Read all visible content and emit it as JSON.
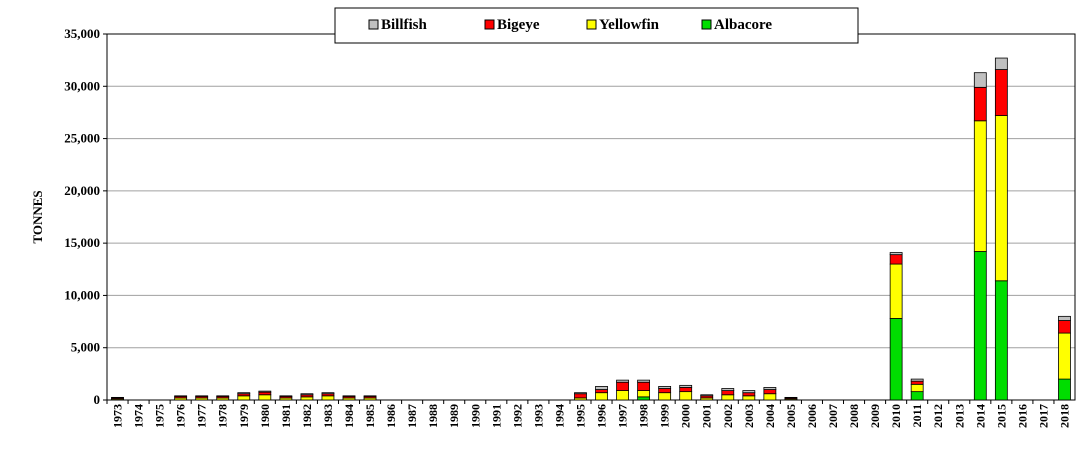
{
  "chart_data": {
    "type": "stacked_bar",
    "y_label": "TONNES",
    "categories": [
      "1973",
      "1974",
      "1975",
      "1976",
      "1977",
      "1978",
      "1979",
      "1980",
      "1981",
      "1982",
      "1983",
      "1984",
      "1985",
      "1986",
      "1987",
      "1988",
      "1989",
      "1990",
      "1991",
      "1992",
      "1993",
      "1994",
      "1995",
      "1996",
      "1997",
      "1998",
      "1999",
      "2000",
      "2001",
      "2002",
      "2003",
      "2004",
      "2005",
      "2006",
      "2007",
      "2008",
      "2009",
      "2010",
      "2011",
      "2012",
      "2013",
      "2014",
      "2015",
      "2016",
      "2017",
      "2018"
    ],
    "series": [
      {
        "name": "Billfish",
        "color": "#c0c0c0",
        "values": [
          50,
          0,
          0,
          50,
          50,
          50,
          100,
          100,
          50,
          100,
          100,
          50,
          50,
          0,
          0,
          0,
          0,
          0,
          0,
          0,
          0,
          0,
          100,
          300,
          200,
          200,
          200,
          200,
          100,
          200,
          200,
          200,
          50,
          0,
          0,
          0,
          0,
          200,
          200,
          0,
          0,
          1400,
          1100,
          0,
          0,
          400
        ]
      },
      {
        "name": "Bigeye",
        "color": "#ff0000",
        "values": [
          100,
          0,
          0,
          150,
          150,
          150,
          200,
          250,
          150,
          200,
          200,
          150,
          150,
          0,
          0,
          0,
          0,
          0,
          0,
          0,
          0,
          0,
          400,
          300,
          800,
          800,
          400,
          400,
          200,
          400,
          300,
          400,
          100,
          0,
          0,
          0,
          0,
          900,
          300,
          0,
          0,
          3200,
          4400,
          0,
          0,
          1200
        ]
      },
      {
        "name": "Yellowfin",
        "color": "#ffff00",
        "values": [
          100,
          0,
          0,
          200,
          200,
          200,
          400,
          500,
          200,
          300,
          400,
          200,
          200,
          0,
          0,
          0,
          0,
          0,
          0,
          0,
          0,
          0,
          200,
          700,
          900,
          600,
          700,
          800,
          200,
          500,
          400,
          600,
          100,
          0,
          0,
          0,
          0,
          5200,
          700,
          0,
          0,
          12500,
          15800,
          0,
          0,
          4400
        ]
      },
      {
        "name": "Albacore",
        "color": "#00dd00",
        "values": [
          0,
          0,
          0,
          0,
          0,
          0,
          0,
          0,
          0,
          0,
          0,
          0,
          0,
          0,
          0,
          0,
          0,
          0,
          0,
          0,
          0,
          0,
          0,
          0,
          0,
          300,
          0,
          0,
          0,
          0,
          0,
          0,
          0,
          0,
          0,
          0,
          0,
          7800,
          800,
          0,
          0,
          14200,
          11400,
          0,
          0,
          2000
        ]
      }
    ],
    "ylim": [
      0,
      35000
    ],
    "yticks": [
      0,
      {
        "value": 5000,
        "label": "5,000"
      },
      {
        "value": 10000,
        "label": "10,000"
      },
      {
        "value": 15000,
        "label": "15,000"
      },
      {
        "value": 20000,
        "label": "20,000"
      },
      {
        "value": 25000,
        "label": "25,000"
      },
      {
        "value": 30000,
        "label": "30,000"
      },
      {
        "value": 35000,
        "label": "35,000"
      }
    ],
    "grid": true,
    "legend": "top"
  }
}
